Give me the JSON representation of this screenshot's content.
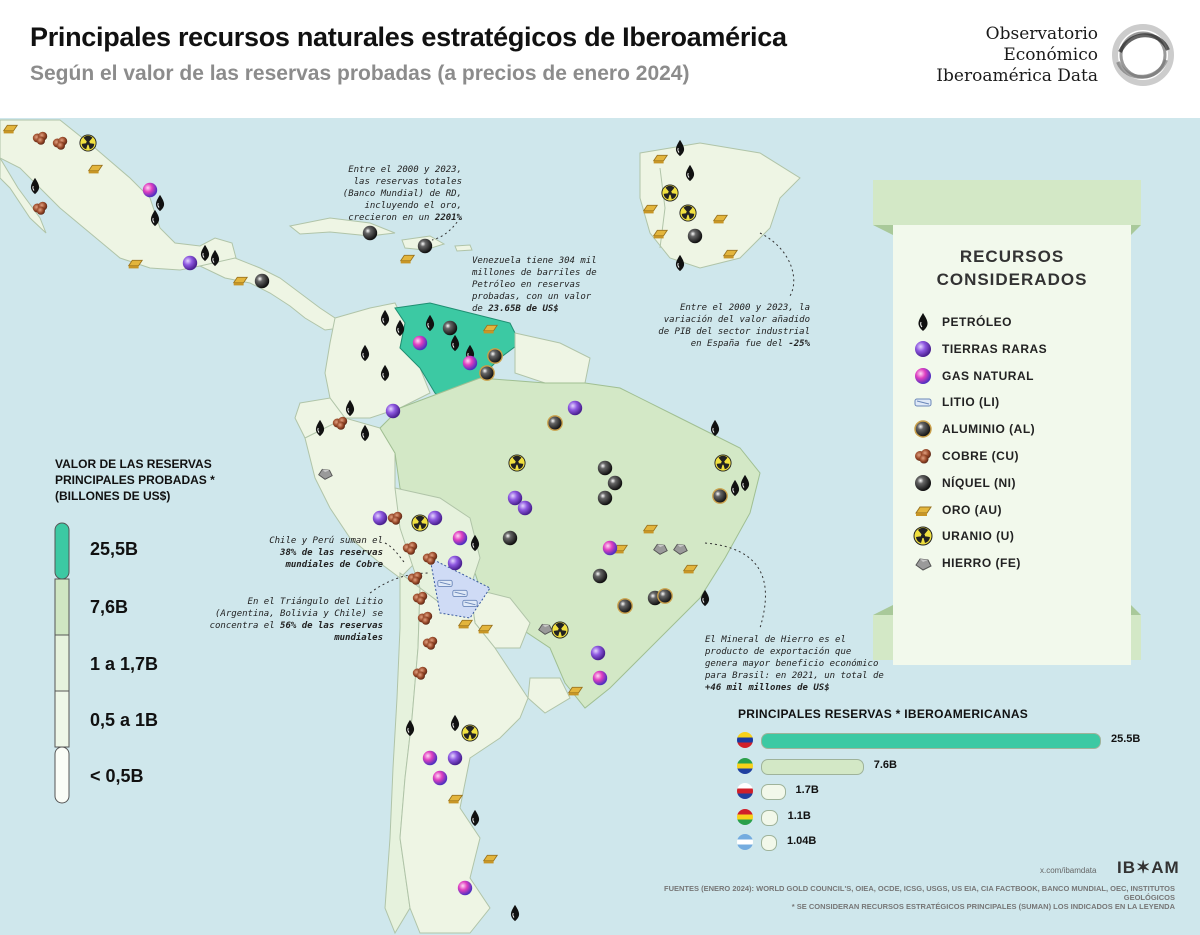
{
  "header": {
    "title": "Principales recursos naturales estratégicos de Iberoamérica",
    "subtitle": "Según el valor de las reservas probadas (a precios de enero 2024)",
    "org_line1": "Observatorio",
    "org_line2": "Económico",
    "org_line3": "Iberoamérica Data"
  },
  "annotations": {
    "dr_text": "Entre el 2000 y 2023, las reservas totales (Banco Mundial) de RD, incluyendo el oro, crecieron en un",
    "dr_value": "2201%",
    "venezuela_text": "Venezuela tiene 304 mil millones de barriles de Petróleo en reservas probadas, con un valor de",
    "venezuela_value": "23.65B de US$",
    "spain_text": "Entre el 2000 y 2023, la variación del valor añadido de PIB del sector industrial en España fue del",
    "spain_value": "-25%",
    "copper_text1": "Chile y Perú suman el",
    "copper_value": "38% de las reservas mundiales de Cobre",
    "lithium_text": "En el Triángulo del Litio (Argentina, Bolivia y Chile) se concentra el",
    "lithium_value": "56% de las reservas mundiales",
    "brazil_text": "El Mineral de Hierro es el producto de exportación que genera mayor beneficio económico para Brasil: en 2021, un total de",
    "brazil_value": "+46 mil millones de US$"
  },
  "scale_legend": {
    "title_line1": "VALOR DE LAS RESERVAS",
    "title_line2": "PRINCIPALES PROBADAS *",
    "title_line3": "(BILLONES DE US$)",
    "levels": [
      {
        "label": "25,5B",
        "color": "#3cc9a3"
      },
      {
        "label": "7,6B",
        "color": "#cfe6c2"
      },
      {
        "label": "1 a 1,7B",
        "color": "#e6f2dd"
      },
      {
        "label": "0,5 a 1B",
        "color": "#eef7e8"
      },
      {
        "label": "< 0,5B",
        "color": "#fafdf7"
      }
    ]
  },
  "resources_legend": {
    "title_line1": "RECURSOS",
    "title_line2": "CONSIDERADOS",
    "items": [
      {
        "label": "PETRÓLEO",
        "icon": "oil-drop-icon"
      },
      {
        "label": "TIERRAS RARAS",
        "icon": "rare-earth-sphere-icon"
      },
      {
        "label": "GAS NATURAL",
        "icon": "gas-sphere-icon"
      },
      {
        "label": "LITIO (LI)",
        "icon": "lithium-icon"
      },
      {
        "label": "ALUMINIO (AL)",
        "icon": "aluminium-sphere-icon"
      },
      {
        "label": "COBRE (CU)",
        "icon": "copper-nugget-icon"
      },
      {
        "label": "NÍQUEL (NI)",
        "icon": "nickel-sphere-icon"
      },
      {
        "label": "ORO (AU)",
        "icon": "gold-bar-icon"
      },
      {
        "label": "URANIO (U)",
        "icon": "uranium-icon"
      },
      {
        "label": "HIERRO (FE)",
        "icon": "iron-ore-icon"
      }
    ]
  },
  "chart_data": {
    "type": "bar",
    "title": "PRINCIPALES RESERVAS * IBEROAMERICANAS",
    "categories": [
      "Venezuela",
      "Brasil",
      "Chile",
      "Bolivia",
      "Argentina"
    ],
    "values": [
      25.5,
      7.6,
      1.7,
      1.1,
      1.04
    ],
    "value_labels": [
      "25.5B",
      "7.6B",
      "1.7B",
      "1.1B",
      "1.04B"
    ],
    "colors": [
      "#3cc9a3",
      "#d3e8c6",
      "#f2f8ea",
      "#f2f8ea",
      "#f2f8ea"
    ]
  },
  "footer": {
    "handle": "x.com/ibamdata",
    "brand": "IB✶AM",
    "sources": "FUENTES (ENERO 2024): WORLD GOLD COUNCIL'S, OIEA, OCDE, ICSG, USGS, US EIA, CIA FACTBOOK, BANCO MUNDIAL, OEC, INSTITUTOS GEOLÓGICOS",
    "footnote": "* SE CONSIDERAN RECURSOS ESTRATÉGICOS PRINCIPALES (SUMAN) LOS INDICADOS EN LA LEYENDA"
  },
  "colors": {
    "ocean": "#cfe7ec",
    "land": "#eef5e4",
    "venezuela": "#3cc9a3",
    "brazil": "#d3e8c6",
    "copper": "#a0502a",
    "gold": "#e3b53c",
    "oil": "#111111"
  }
}
